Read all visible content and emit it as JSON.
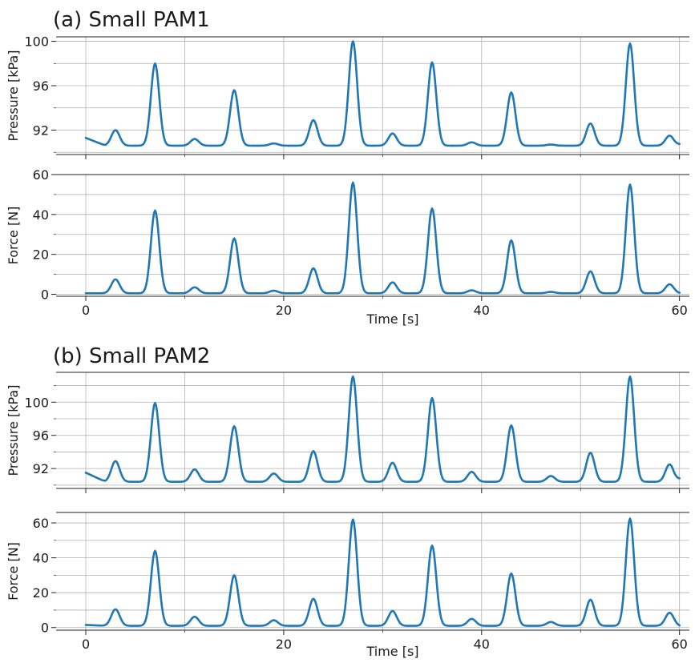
{
  "figure": {
    "panels": [
      {
        "id": "a",
        "title": "(a) Small PAM1"
      },
      {
        "id": "b",
        "title": "(b) Small PAM2"
      }
    ],
    "line_color": "#1f77b4"
  },
  "chart_data": [
    {
      "type": "line",
      "panel": "a",
      "title": "(a) Small PAM1",
      "xlabel": "",
      "ylabel": "Pressure [kPa]",
      "xlim": [
        -3,
        61
      ],
      "ylim": [
        89.8,
        100.4
      ],
      "yticks": [
        92,
        96,
        100
      ],
      "ytick_labels": [
        "92",
        "96",
        "100"
      ],
      "xticks": [
        0,
        20,
        40,
        60
      ],
      "xtick_labels": [],
      "grid": true,
      "baseline": 90.6,
      "start_value": 91.3,
      "end_value": 90.7,
      "peaks": [
        {
          "x": 3,
          "y": 92.0
        },
        {
          "x": 7,
          "y": 98.0
        },
        {
          "x": 11,
          "y": 91.2
        },
        {
          "x": 15,
          "y": 95.6
        },
        {
          "x": 19,
          "y": 90.8
        },
        {
          "x": 23,
          "y": 92.9
        },
        {
          "x": 27,
          "y": 100.0
        },
        {
          "x": 31,
          "y": 91.7
        },
        {
          "x": 35,
          "y": 98.1
        },
        {
          "x": 39,
          "y": 90.9
        },
        {
          "x": 43,
          "y": 95.4
        },
        {
          "x": 47,
          "y": 90.7
        },
        {
          "x": 51,
          "y": 92.6
        },
        {
          "x": 55,
          "y": 99.8
        },
        {
          "x": 59,
          "y": 91.5
        }
      ]
    },
    {
      "type": "line",
      "panel": "a",
      "xlabel": "Time [s]",
      "ylabel": "Force [N]",
      "xlim": [
        -3,
        61
      ],
      "ylim": [
        -1,
        60
      ],
      "yticks": [
        0,
        20,
        40,
        60
      ],
      "ytick_labels": [
        "0",
        "20",
        "40",
        "60"
      ],
      "xticks": [
        0,
        20,
        40,
        60
      ],
      "xtick_labels": [
        "0",
        "20",
        "40",
        "60"
      ],
      "grid": true,
      "baseline": 0.5,
      "start_value": 0.5,
      "end_value": 0.5,
      "peaks": [
        {
          "x": 3,
          "y": 7.5
        },
        {
          "x": 7,
          "y": 42
        },
        {
          "x": 11,
          "y": 3.5
        },
        {
          "x": 15,
          "y": 28
        },
        {
          "x": 19,
          "y": 1.8
        },
        {
          "x": 23,
          "y": 13
        },
        {
          "x": 27,
          "y": 56
        },
        {
          "x": 31,
          "y": 6
        },
        {
          "x": 35,
          "y": 43
        },
        {
          "x": 39,
          "y": 2
        },
        {
          "x": 43,
          "y": 27
        },
        {
          "x": 47,
          "y": 1.2
        },
        {
          "x": 51,
          "y": 11.5
        },
        {
          "x": 55,
          "y": 55
        },
        {
          "x": 59,
          "y": 5
        }
      ]
    },
    {
      "type": "line",
      "panel": "b",
      "title": "(b) Small PAM2",
      "xlabel": "",
      "ylabel": "Pressure [kPa]",
      "xlim": [
        -3,
        61
      ],
      "ylim": [
        89.6,
        103.6
      ],
      "yticks": [
        92,
        96,
        100
      ],
      "ytick_labels": [
        "92",
        "96",
        "100"
      ],
      "xticks": [
        0,
        20,
        40,
        60
      ],
      "xtick_labels": [],
      "grid": true,
      "baseline": 90.4,
      "start_value": 91.5,
      "end_value": 90.7,
      "peaks": [
        {
          "x": 3,
          "y": 92.9
        },
        {
          "x": 7,
          "y": 99.9
        },
        {
          "x": 11,
          "y": 91.9
        },
        {
          "x": 15,
          "y": 97.1
        },
        {
          "x": 19,
          "y": 91.4
        },
        {
          "x": 23,
          "y": 94.1
        },
        {
          "x": 27,
          "y": 103.1
        },
        {
          "x": 31,
          "y": 92.7
        },
        {
          "x": 35,
          "y": 100.5
        },
        {
          "x": 39,
          "y": 91.6
        },
        {
          "x": 43,
          "y": 97.2
        },
        {
          "x": 47,
          "y": 91.1
        },
        {
          "x": 51,
          "y": 93.9
        },
        {
          "x": 55,
          "y": 103.1
        },
        {
          "x": 59,
          "y": 92.5
        }
      ]
    },
    {
      "type": "line",
      "panel": "b",
      "xlabel": "Time [s]",
      "ylabel": "Force [N]",
      "xlim": [
        -3,
        61
      ],
      "ylim": [
        -1.5,
        66
      ],
      "yticks": [
        0,
        20,
        40,
        60
      ],
      "ytick_labels": [
        "0",
        "20",
        "40",
        "60"
      ],
      "xticks": [
        0,
        20,
        40,
        60
      ],
      "xtick_labels": [
        "0",
        "20",
        "40",
        "60"
      ],
      "grid": true,
      "baseline": 1.0,
      "start_value": 1.5,
      "end_value": 0.8,
      "peaks": [
        {
          "x": 3,
          "y": 10.5
        },
        {
          "x": 7,
          "y": 44
        },
        {
          "x": 11,
          "y": 6.2
        },
        {
          "x": 15,
          "y": 30
        },
        {
          "x": 19,
          "y": 4.2
        },
        {
          "x": 23,
          "y": 16.5
        },
        {
          "x": 27,
          "y": 62
        },
        {
          "x": 31,
          "y": 9.5
        },
        {
          "x": 35,
          "y": 47
        },
        {
          "x": 39,
          "y": 5
        },
        {
          "x": 43,
          "y": 31
        },
        {
          "x": 47,
          "y": 3.2
        },
        {
          "x": 51,
          "y": 16
        },
        {
          "x": 55,
          "y": 62.5
        },
        {
          "x": 59,
          "y": 8.5
        }
      ]
    }
  ]
}
